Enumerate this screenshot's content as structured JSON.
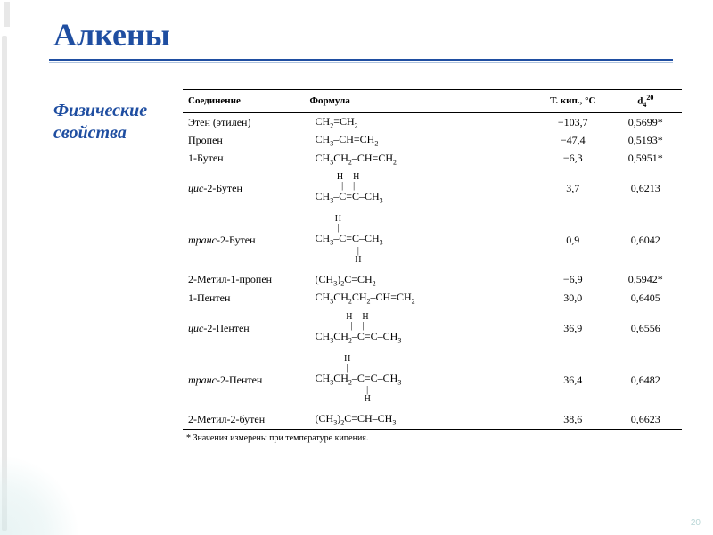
{
  "title": "Алкены",
  "subtitle_line1": "Физические",
  "subtitle_line2": "свойства",
  "headers": {
    "compound": "Соединение",
    "formula": "Формула",
    "tboil": "Т. кип., °С",
    "density_html": "d<sub>4</sub><sup>20</sup>"
  },
  "rows": [
    {
      "name": "Этен (этилен)",
      "formula_html": "CH<sub>2</sub>=CH<sub>2</sub>",
      "t": "−103,7",
      "d": "0,5699*"
    },
    {
      "name": "Пропен",
      "formula_html": "CH<sub>3</sub>–CH=CH<sub>2</sub>",
      "t": "−47,4",
      "d": "0,5193*"
    },
    {
      "name": "1-Бутен",
      "formula_html": "CH<sub>3</sub>CH<sub>2</sub>–CH=CH<sub>2</sub>",
      "t": "−6,3",
      "d": "0,5951*"
    },
    {
      "name": "<i>цис</i>-2-Бутен",
      "formula_html": "<span class='formula'><span class='top'>H&nbsp;&nbsp;H</span><span class='top'>|&nbsp;&nbsp;|</span><span class='mid'>CH<sub>3</sub>–C=C–CH<sub>3</sub></span></span>",
      "t": "3,7",
      "d": "0,6213",
      "multi": true
    },
    {
      "name": "<i>транс</i>-2-Бутен",
      "formula_html": "<span class='formula'><span class='top'>H&nbsp;&nbsp;&nbsp;&nbsp;&nbsp;</span><span class='top'>|&nbsp;&nbsp;&nbsp;&nbsp;&nbsp;</span><span class='mid'>CH<sub>3</sub>–C=C–CH<sub>3</sub></span><span class='bot'>&nbsp;&nbsp;&nbsp;&nbsp;&nbsp;|</span><span class='bot'>&nbsp;&nbsp;&nbsp;&nbsp;&nbsp;H</span></span>",
      "t": "0,9",
      "d": "0,6042",
      "multi": true
    },
    {
      "name": "2-Метил-1-пропен",
      "formula_html": "(CH<sub>3</sub>)<sub>2</sub>C=CH<sub>2</sub>",
      "t": "−6,9",
      "d": "0,5942*"
    },
    {
      "name": "1-Пентен",
      "formula_html": "CH<sub>3</sub>CH<sub>2</sub>CH<sub>2</sub>–CH=CH<sub>2</sub>",
      "t": "30,0",
      "d": "0,6405"
    },
    {
      "name": "<i>цис</i>-2-Пентен",
      "formula_html": "<span class='formula'><span class='top'>H&nbsp;&nbsp;H</span><span class='top'>|&nbsp;&nbsp;|</span><span class='mid'>CH<sub>3</sub>CH<sub>2</sub>–C=C–CH<sub>3</sub></span></span>",
      "t": "36,9",
      "d": "0,6556",
      "multi": true
    },
    {
      "name": "<i>транс</i>-2-Пентен",
      "formula_html": "<span class='formula'><span class='top'>H&nbsp;&nbsp;&nbsp;&nbsp;&nbsp;</span><span class='top'>|&nbsp;&nbsp;&nbsp;&nbsp;&nbsp;</span><span class='mid'>CH<sub>3</sub>CH<sub>2</sub>–C=C–CH<sub>3</sub></span><span class='bot'>&nbsp;&nbsp;&nbsp;&nbsp;&nbsp;|</span><span class='bot'>&nbsp;&nbsp;&nbsp;&nbsp;&nbsp;H</span></span>",
      "t": "36,4",
      "d": "0,6482",
      "multi": true
    },
    {
      "name": "2-Метил-2-бутен",
      "formula_html": "(CH<sub>3</sub>)<sub>2</sub>C=CH–CH<sub>3</sub>",
      "t": "38,6",
      "d": "0,6623",
      "last": true
    }
  ],
  "footnote": "* Значения измерены при температуре кипения.",
  "page_number": "20",
  "colors": {
    "primary": "#1f4ea1",
    "bg": "#ffffff",
    "deco": "#e8e8e8",
    "corner": "#d0e8e8"
  }
}
